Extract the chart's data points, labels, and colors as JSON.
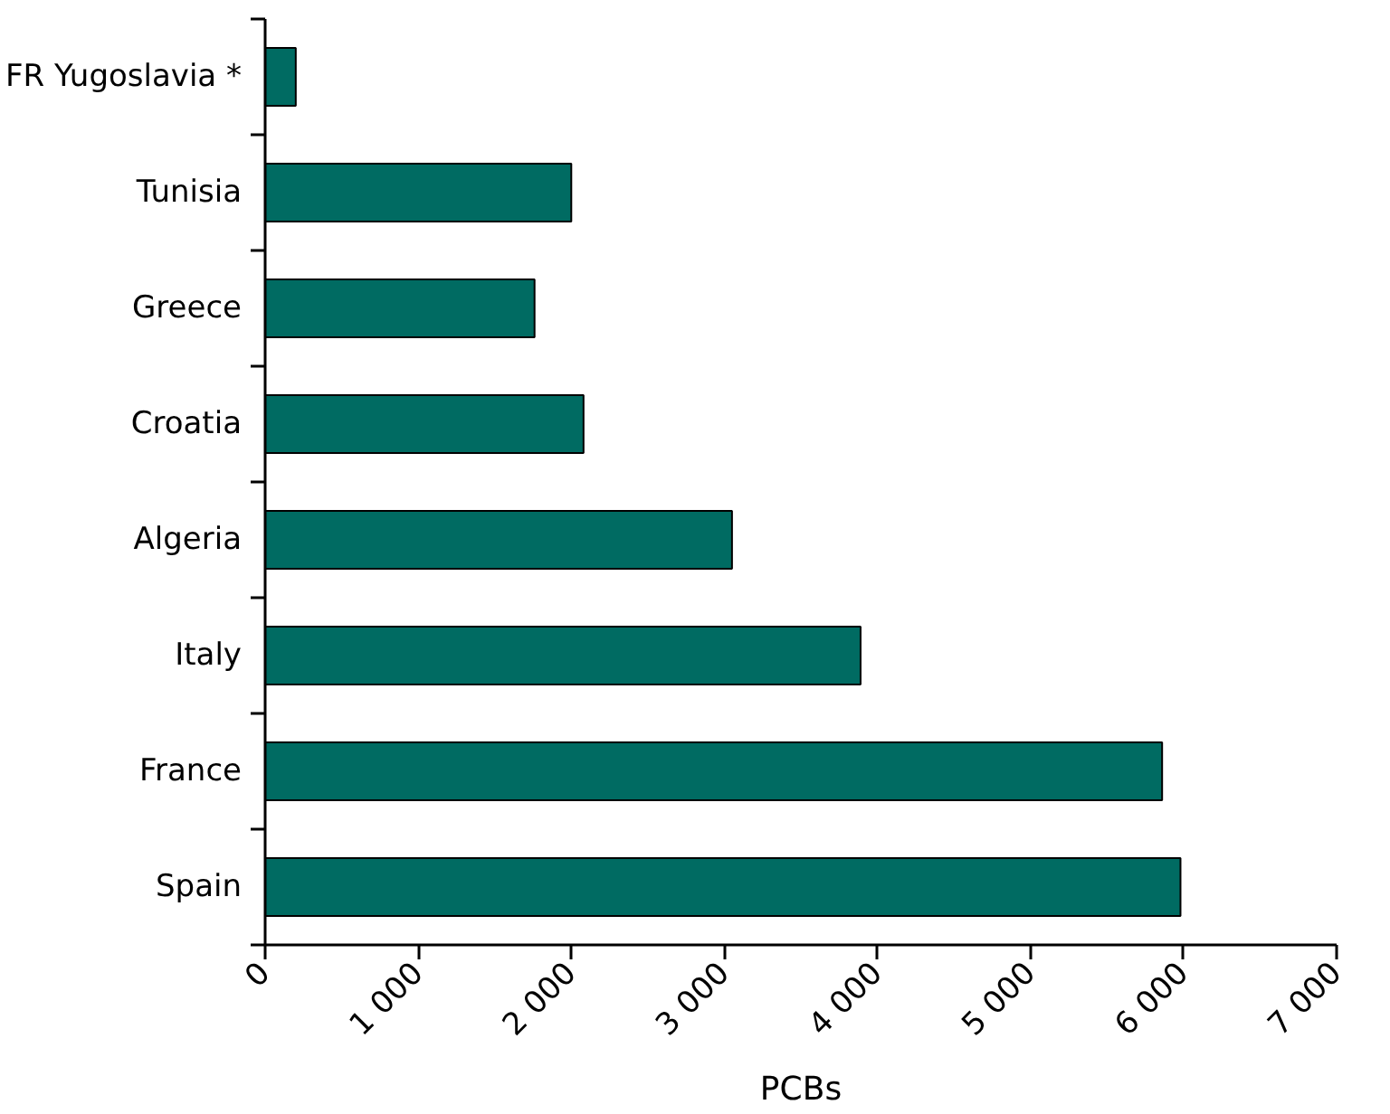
{
  "chart_data": {
    "type": "bar",
    "orientation": "horizontal",
    "xlabel": "PCBs",
    "categories": [
      "FR Yugoslavia *",
      "Tunisia",
      "Greece",
      "Croatia",
      "Algeria",
      "Italy",
      "France",
      "Spain"
    ],
    "values": [
      200,
      2000,
      1760,
      2080,
      3050,
      3890,
      5860,
      5980
    ],
    "color": "#006b62",
    "xlim": [
      0,
      7000
    ],
    "xticks": [
      0,
      {
        "value": 1000,
        "label": "1 000"
      },
      {
        "value": 2000,
        "label": "2 000"
      },
      {
        "value": 3000,
        "label": "3 000"
      },
      {
        "value": 4000,
        "label": "4 000"
      },
      {
        "value": 5000,
        "label": "5 000"
      },
      {
        "value": 6000,
        "label": "6 000"
      },
      {
        "value": 7000,
        "label": "7 000"
      }
    ],
    "grid": false
  }
}
